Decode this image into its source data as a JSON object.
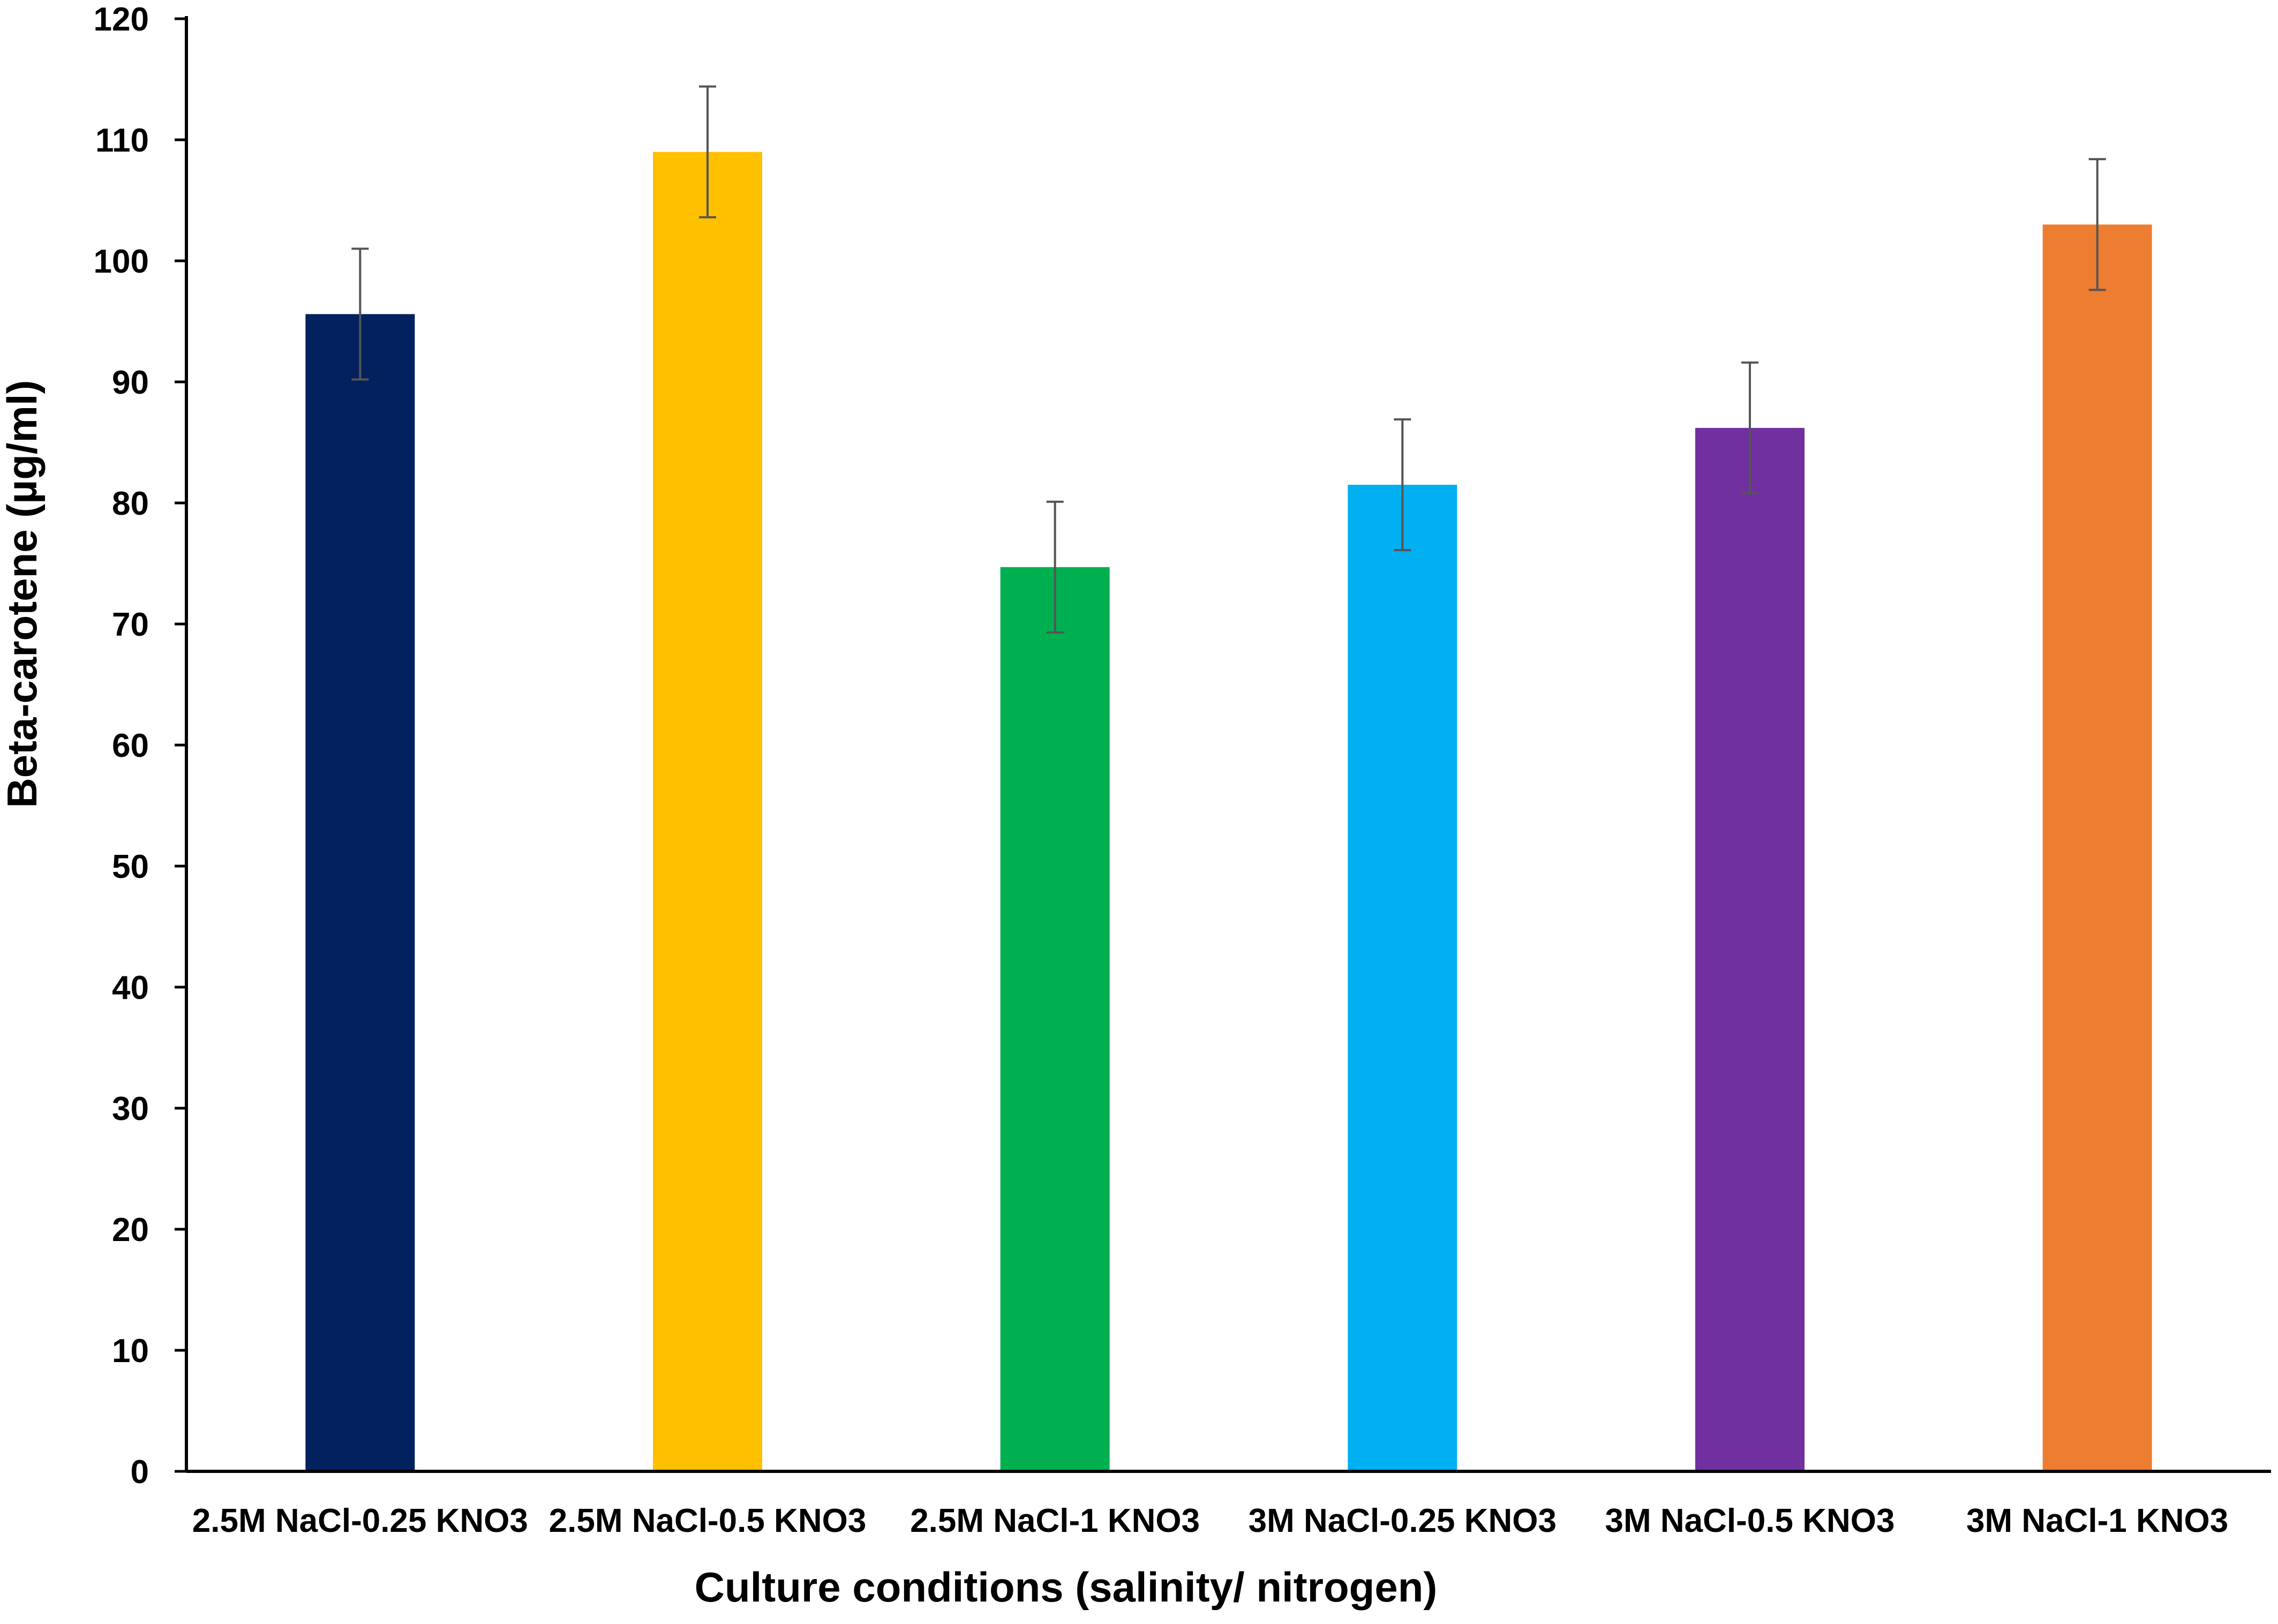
{
  "chart_data": {
    "type": "bar",
    "title": "",
    "xlabel": "Culture conditions (salinity/ nitrogen)",
    "ylabel": "Beta-carotene (µg/ml)",
    "ylim": [
      0,
      120
    ],
    "yticks": [
      0,
      10,
      20,
      30,
      40,
      50,
      60,
      70,
      80,
      90,
      100,
      110,
      120
    ],
    "grid": false,
    "legend": "none",
    "categories": [
      "2.5M NaCl-0.25 KNO3",
      "2.5M NaCl-0.5 KNO3",
      "2.5M NaCl-1 KNO3",
      "3M NaCl-0.25 KNO3",
      "3M NaCl-0.5 KNO3",
      "3M NaCl-1 KNO3"
    ],
    "values": [
      95.6,
      109.0,
      74.7,
      81.5,
      86.2,
      103.0
    ],
    "errors": [
      5.4,
      5.4,
      5.4,
      5.4,
      5.4,
      5.4
    ],
    "colors": [
      "#03215E",
      "#FFC000",
      "#00B050",
      "#00B0F0",
      "#7030A0",
      "#ED7D31"
    ],
    "error_bar_color": "#555555",
    "axis_color": "#000000"
  }
}
